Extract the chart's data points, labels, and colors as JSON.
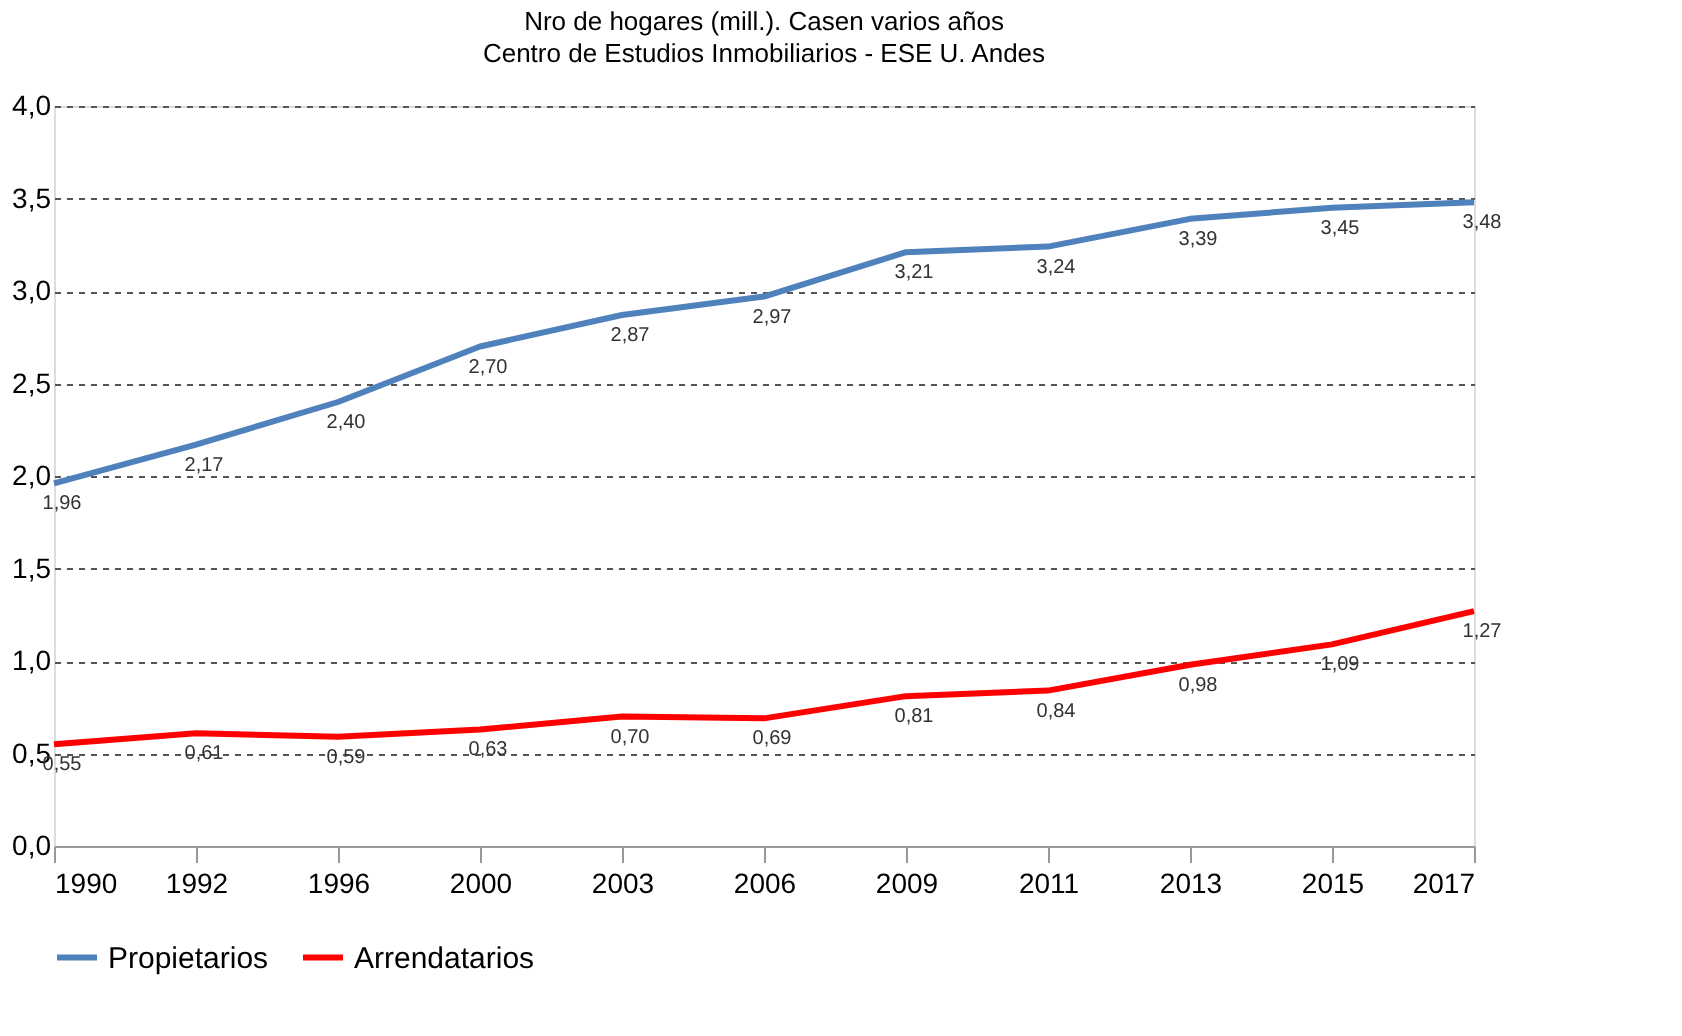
{
  "chart_data": {
    "type": "line",
    "title": "Nro de hogares (mill.). Casen varios años",
    "subtitle": "Centro de Estudios Inmobiliarios - ESE U. Andes",
    "categories": [
      "1990",
      "1992",
      "1996",
      "2000",
      "2003",
      "2006",
      "2009",
      "2011",
      "2013",
      "2015",
      "2017"
    ],
    "series": [
      {
        "name": "Propietarios",
        "color": "#4f81bd",
        "values": [
          1.96,
          2.17,
          2.4,
          2.7,
          2.87,
          2.97,
          3.21,
          3.24,
          3.39,
          3.45,
          3.48
        ],
        "value_labels": [
          "1,96",
          "2,17",
          "2,40",
          "2,70",
          "2,87",
          "2,97",
          "3,21",
          "3,24",
          "3,39",
          "3,45",
          "3,48"
        ]
      },
      {
        "name": "Arrendatarios",
        "color": "#ff0000",
        "values": [
          0.55,
          0.61,
          0.59,
          0.63,
          0.7,
          0.69,
          0.81,
          0.84,
          0.98,
          1.09,
          1.27
        ],
        "value_labels": [
          "0,55",
          "0,61",
          "0,59",
          "0,63",
          "0,70",
          "0,69",
          "0,81",
          "0,84",
          "0,98",
          "1,09",
          "1,27"
        ]
      }
    ],
    "ylim": [
      0,
      4
    ],
    "yticks": [
      {
        "value": 0,
        "label": "0,0"
      },
      {
        "value": 0.5,
        "label": "0,5"
      },
      {
        "value": 1,
        "label": "1,0"
      },
      {
        "value": 1.5,
        "label": "1,5"
      },
      {
        "value": 2,
        "label": "2,0"
      },
      {
        "value": 2.5,
        "label": "2,5"
      },
      {
        "value": 3,
        "label": "3,0"
      },
      {
        "value": 3.5,
        "label": "3,5"
      },
      {
        "value": 4,
        "label": "4,0"
      }
    ],
    "grid": "y",
    "legend": "bottom",
    "marker": "none",
    "line_style": "solid"
  }
}
